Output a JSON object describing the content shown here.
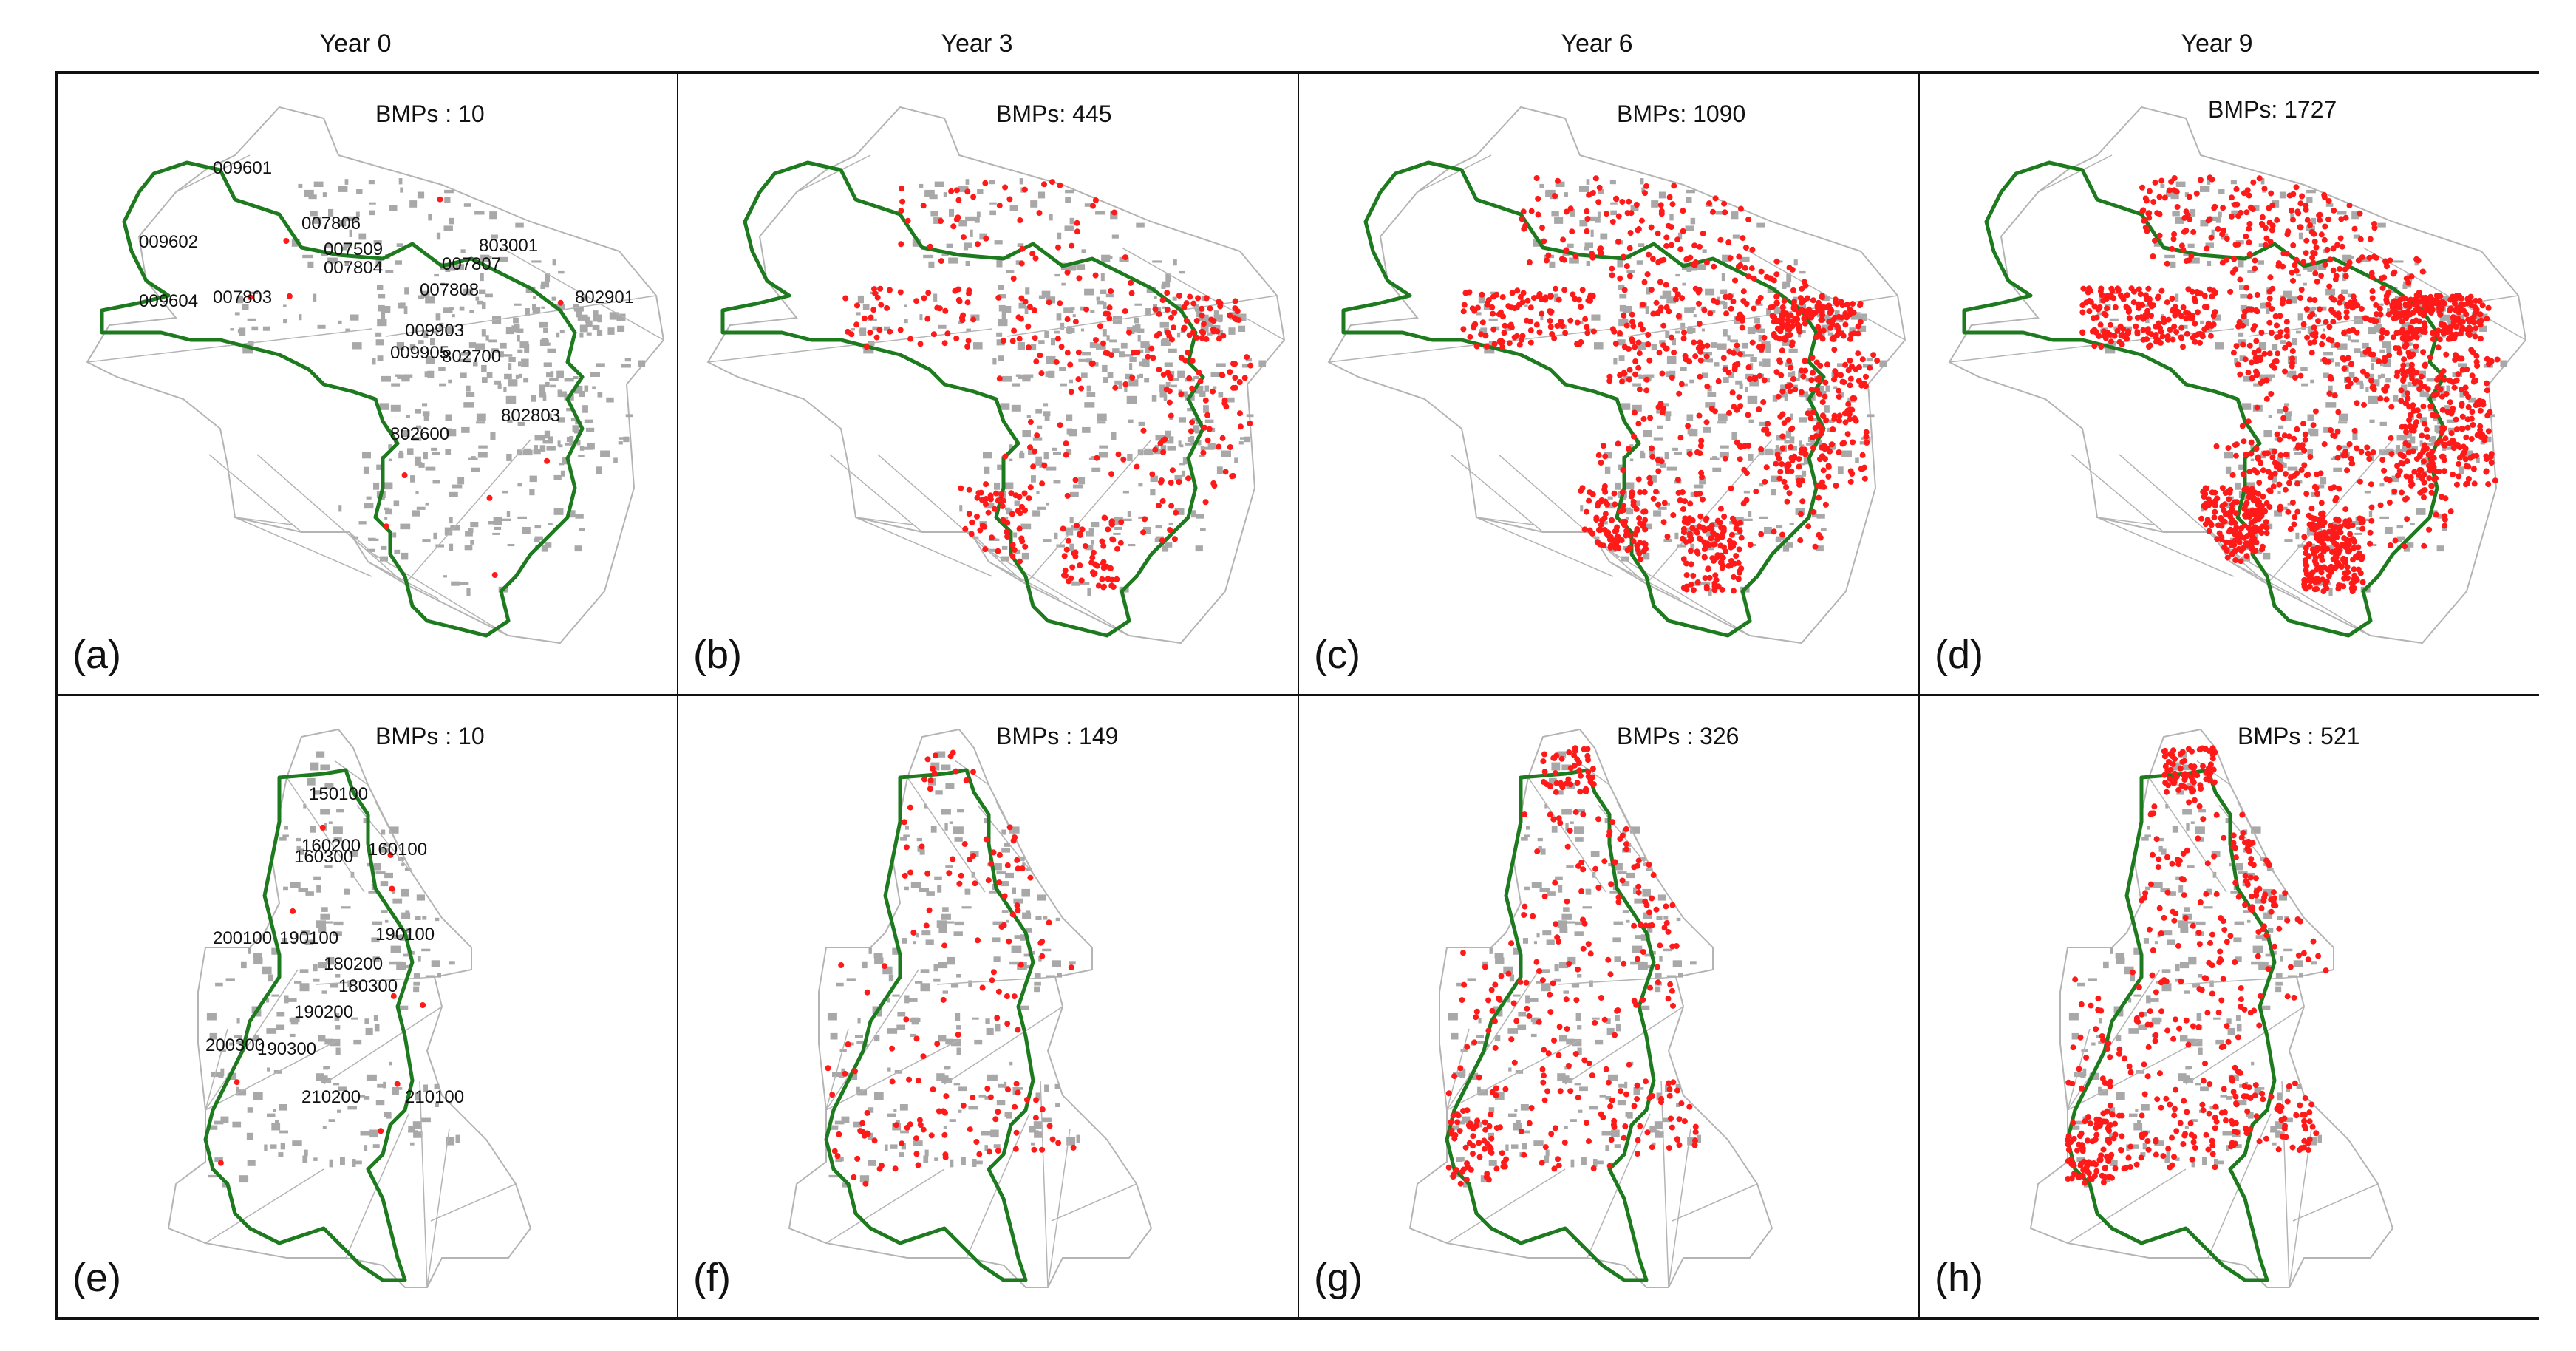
{
  "columns": [
    "Year 0",
    "Year 3",
    "Year 6",
    "Year 9"
  ],
  "rows": [
    {
      "panels": [
        {
          "letter": "(a)",
          "bmps": "BMPs : 10",
          "bmp_count": 10,
          "tracts": [
            "009601",
            "007806",
            "009602",
            "007509",
            "803001",
            "007807",
            "007804",
            "009604",
            "007803",
            "007808",
            "802901",
            "009903",
            "009905",
            "802700",
            "802600",
            "802803"
          ]
        },
        {
          "letter": "(b)",
          "bmps": "BMPs: 445",
          "bmp_count": 445,
          "tracts": []
        },
        {
          "letter": "(c)",
          "bmps": "BMPs: 1090",
          "bmp_count": 1090,
          "tracts": []
        },
        {
          "letter": "(d)",
          "bmps": "BMPs: 1727",
          "bmp_count": 1727,
          "tracts": []
        }
      ]
    },
    {
      "panels": [
        {
          "letter": "(e)",
          "bmps": "BMPs : 10",
          "bmp_count": 10,
          "tracts": [
            "150100",
            "160200",
            "160100",
            "160300",
            "200100",
            "190100",
            "190100",
            "180200",
            "180300",
            "190200",
            "200300",
            "190300",
            "210200",
            "210100"
          ]
        },
        {
          "letter": "(f)",
          "bmps": "BMPs : 149",
          "bmp_count": 149,
          "tracts": []
        },
        {
          "letter": "(g)",
          "bmps": "BMPs : 326",
          "bmp_count": 326,
          "tracts": []
        },
        {
          "letter": "(h)",
          "bmps": "BMPs : 521",
          "bmp_count": 521,
          "tracts": []
        }
      ]
    }
  ],
  "colors": {
    "watershed": "#1e7a1e",
    "bmp": "#ff1a1a",
    "parcels": "#a8a8a8",
    "outline": "#b4b4b4"
  }
}
